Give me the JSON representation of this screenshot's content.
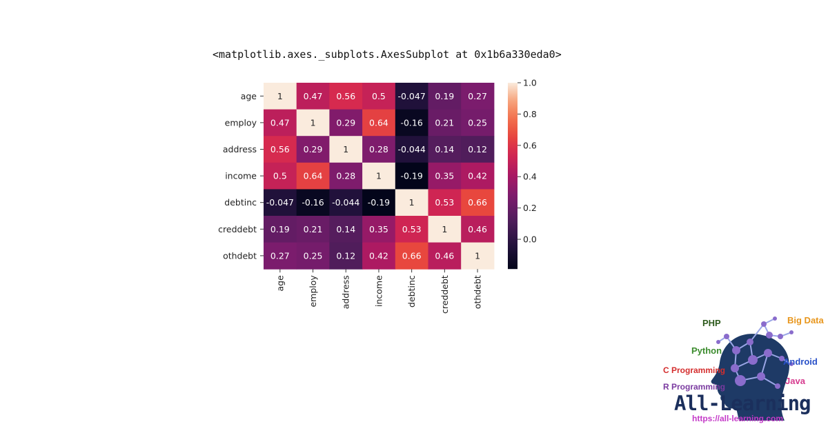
{
  "output_repr": "<matplotlib.axes._subplots.AxesSubplot at 0x1b6a330eda0>",
  "chart_data": {
    "type": "heatmap",
    "rows": [
      "age",
      "employ",
      "address",
      "income",
      "debtinc",
      "creddebt",
      "othdebt"
    ],
    "columns": [
      "age",
      "employ",
      "address",
      "income",
      "debtinc",
      "creddebt",
      "othdebt"
    ],
    "values": [
      [
        1,
        0.47,
        0.56,
        0.5,
        -0.047,
        0.19,
        0.27
      ],
      [
        0.47,
        1,
        0.29,
        0.64,
        -0.16,
        0.21,
        0.25
      ],
      [
        0.56,
        0.29,
        1,
        0.28,
        -0.044,
        0.14,
        0.12
      ],
      [
        0.5,
        0.64,
        0.28,
        1,
        -0.19,
        0.35,
        0.42
      ],
      [
        -0.047,
        -0.16,
        -0.044,
        -0.19,
        1,
        0.53,
        0.66
      ],
      [
        0.19,
        0.21,
        0.14,
        0.35,
        0.53,
        1,
        0.46
      ],
      [
        0.27,
        0.25,
        0.12,
        0.42,
        0.66,
        0.46,
        1
      ]
    ],
    "labels": [
      [
        "1",
        "0.47",
        "0.56",
        "0.5",
        "-0.047",
        "0.19",
        "0.27"
      ],
      [
        "0.47",
        "1",
        "0.29",
        "0.64",
        "-0.16",
        "0.21",
        "0.25"
      ],
      [
        "0.56",
        "0.29",
        "1",
        "0.28",
        "-0.044",
        "0.14",
        "0.12"
      ],
      [
        "0.5",
        "0.64",
        "0.28",
        "1",
        "-0.19",
        "0.35",
        "0.42"
      ],
      [
        "-0.047",
        "-0.16",
        "-0.044",
        "-0.19",
        "1",
        "0.53",
        "0.66"
      ],
      [
        "0.19",
        "0.21",
        "0.14",
        "0.35",
        "0.53",
        "1",
        "0.46"
      ],
      [
        "0.27",
        "0.25",
        "0.12",
        "0.42",
        "0.66",
        "0.46",
        "1"
      ]
    ],
    "colormap": "rocket",
    "vmin": -0.19,
    "vmax": 1.0,
    "colorbar_ticks": [
      1.0,
      0.8,
      0.6,
      0.4,
      0.2,
      0.0
    ],
    "colorbar_tick_labels": [
      "1.0",
      "0.8",
      "0.6",
      "0.4",
      "0.2",
      "0.0"
    ],
    "annotated": true
  },
  "watermark": {
    "topics": {
      "php": "PHP",
      "big_data": "Big Data",
      "python": "Python",
      "android": "Android",
      "c_programming": "C Programming",
      "java": "Java",
      "r_programming": "R Programming"
    },
    "brand": "All-Learning",
    "url": "https://all-learning.com",
    "colors": {
      "brand": "#1b2f5c",
      "head": "#1e3a66",
      "nodes": "#7a5cc0"
    }
  }
}
